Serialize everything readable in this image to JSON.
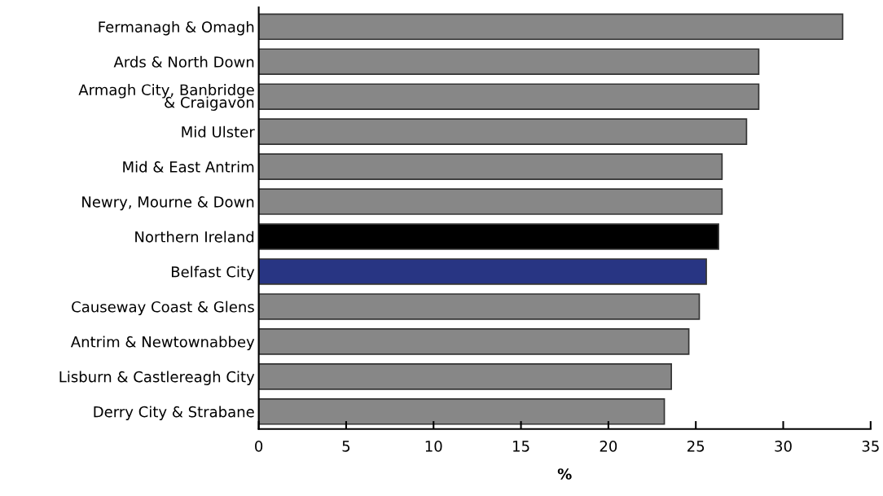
{
  "chart_data": {
    "type": "bar",
    "orientation": "horizontal",
    "xlabel": "%",
    "categories": [
      "Fermanagh & Omagh",
      "Ards & North Down",
      "Armagh City, Banbridge\n& Craigavon",
      "Mid Ulster",
      "Mid & East Antrim",
      "Newry, Mourne & Down",
      "Northern Ireland",
      "Belfast City",
      "Causeway Coast & Glens",
      "Antrim & Newtownabbey",
      "Lisburn & Castlereagh City",
      "Derry City & Strabane"
    ],
    "values": [
      33.4,
      28.6,
      28.6,
      27.9,
      26.5,
      26.5,
      26.3,
      25.6,
      25.2,
      24.6,
      23.6,
      23.2
    ],
    "colors": [
      "#878787",
      "#878787",
      "#878787",
      "#878787",
      "#878787",
      "#878787",
      "#000000",
      "#283583",
      "#878787",
      "#878787",
      "#878787",
      "#878787"
    ],
    "xlim": [
      0,
      35
    ],
    "xticks": [
      0,
      5,
      10,
      15,
      20,
      25,
      30,
      35
    ],
    "grid": false
  }
}
